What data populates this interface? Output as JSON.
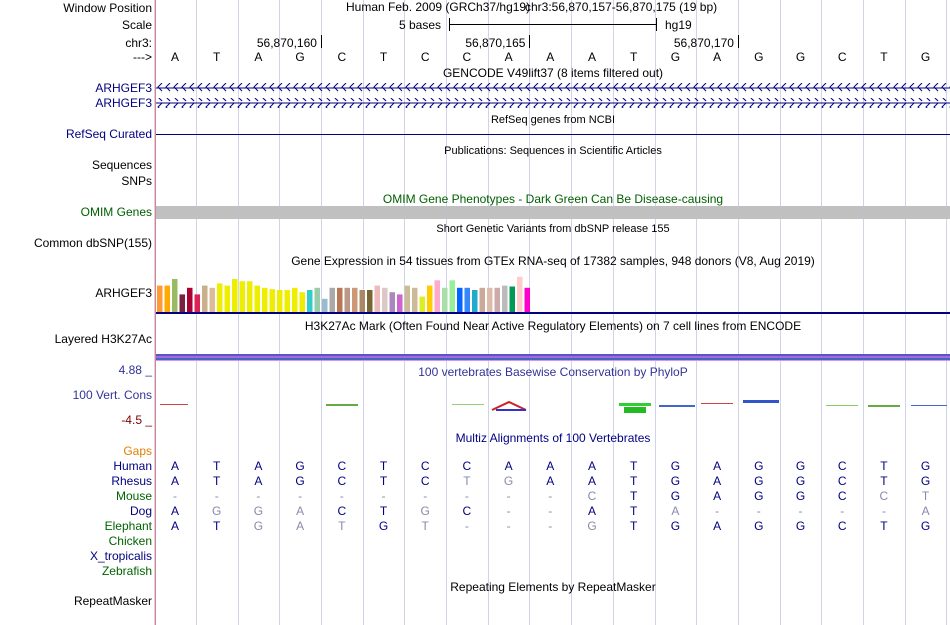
{
  "labels": {
    "window_position": "Window Position",
    "scale": "Scale",
    "chrom": "chr3:",
    "strand": "--->",
    "gencode_1": "ARHGEF3",
    "gencode_2": "ARHGEF3",
    "refseq": "RefSeq Curated",
    "sequences": "Sequences",
    "snps": "SNPs",
    "omim": "OMIM Genes",
    "dbsnp": "Common dbSNP(155)",
    "gtex": "ARHGEF3",
    "h3k27ac": "Layered H3K27Ac",
    "phylop_max": "4.88 _",
    "phylop": "100 Vert. Cons",
    "phylop_min": "-4.5 _",
    "gaps": "Gaps",
    "species": [
      "Human",
      "Rhesus",
      "Mouse",
      "Dog",
      "Elephant",
      "Chicken",
      "X_tropicalis",
      "Zebrafish"
    ],
    "repeatmasker": "RepeatMasker"
  },
  "colors": {
    "navy": "#000080",
    "omim_green": "#006000",
    "gaps_orange": "#e08000",
    "phylop_blue": "#333399",
    "phylop_min_red": "#800000",
    "separator": "#e08080",
    "gridline": "#cfd4ec",
    "omim_bar": "#c0c0c0",
    "mouse_green": "#006400",
    "faded_base": "#8a8aaa"
  },
  "header": {
    "assembly": "Human Feb. 2009 (GRCh37/hg19)",
    "position": "chr3:56,870,157-56,870,175 (19 bp)",
    "scale_label": "5 bases",
    "scale_db": "hg19",
    "ticks": [
      "56,870,160",
      "56,870,165",
      "56,870,170"
    ]
  },
  "sequence": [
    "A",
    "T",
    "A",
    "G",
    "C",
    "T",
    "C",
    "C",
    "A",
    "A",
    "A",
    "T",
    "G",
    "A",
    "G",
    "G",
    "C",
    "T",
    "G"
  ],
  "track_titles": {
    "gencode": "GENCODE V49lift37 (8 items filtered out)",
    "refseq": "RefSeq genes from NCBI",
    "publications": "Publications: Sequences in Scientific Articles",
    "omim": "OMIM Gene Phenotypes - Dark Green Can Be Disease-causing",
    "dbsnp": "Short Genetic Variants from dbSNP release 155",
    "gtex": "Gene Expression in 54 tissues from GTEx RNA-seq of 17382 samples, 948 donors (V8, Aug 2019)",
    "h3k27ac": "H3K27Ac Mark (Often Found Near Active Regulatory Elements) on 7 cell lines from ENCODE",
    "phylop": "100 vertebrates Basewise Conservation by PhyloP",
    "multiz": "Multiz Alignments of 100 Vertebrates",
    "repeatmasker": "Repeating Elements by RepeatMasker"
  },
  "gtex_bars": [
    {
      "h": 0.6,
      "c": "#ff9933"
    },
    {
      "h": 0.6,
      "c": "#ffaa00"
    },
    {
      "h": 0.75,
      "c": "#99bb66"
    },
    {
      "h": 0.4,
      "c": "#7b1f3f"
    },
    {
      "h": 0.55,
      "c": "#aa0033"
    },
    {
      "h": 0.4,
      "c": "#dd2255"
    },
    {
      "h": 0.6,
      "c": "#c8b08a"
    },
    {
      "h": 0.55,
      "c": "#ddbb99"
    },
    {
      "h": 0.65,
      "c": "#eeee00"
    },
    {
      "h": 0.6,
      "c": "#eeee00"
    },
    {
      "h": 0.75,
      "c": "#eeee00"
    },
    {
      "h": 0.7,
      "c": "#eeee00"
    },
    {
      "h": 0.7,
      "c": "#eeee00"
    },
    {
      "h": 0.6,
      "c": "#eeee00"
    },
    {
      "h": 0.55,
      "c": "#eeee00"
    },
    {
      "h": 0.52,
      "c": "#eeee00"
    },
    {
      "h": 0.5,
      "c": "#eeee00"
    },
    {
      "h": 0.5,
      "c": "#eeee00"
    },
    {
      "h": 0.55,
      "c": "#eeee00"
    },
    {
      "h": 0.45,
      "c": "#eeee00"
    },
    {
      "h": 0.5,
      "c": "#33cccc"
    },
    {
      "h": 0.55,
      "c": "#99ccaa"
    },
    {
      "h": 0.3,
      "c": "#99bbcc"
    },
    {
      "h": 0.55,
      "c": "#aaaaaa"
    },
    {
      "h": 0.55,
      "c": "#bb7755"
    },
    {
      "h": 0.55,
      "c": "#bb9988"
    },
    {
      "h": 0.55,
      "c": "#cc9977"
    },
    {
      "h": 0.5,
      "c": "#aa8866"
    },
    {
      "h": 0.5,
      "c": "#776633"
    },
    {
      "h": 0.6,
      "c": "#eebbbb"
    },
    {
      "h": 0.55,
      "c": "#ddc7c7"
    },
    {
      "h": 0.45,
      "c": "#aa88bb"
    },
    {
      "h": 0.4,
      "c": "#cc66cc"
    },
    {
      "h": 0.6,
      "c": "#ccbb99"
    },
    {
      "h": 0.55,
      "c": "#ccbb99"
    },
    {
      "h": 0.35,
      "c": "#ddee22"
    },
    {
      "h": 0.6,
      "c": "#ffcc00"
    },
    {
      "h": 0.72,
      "c": "#ffaacc"
    },
    {
      "h": 0.55,
      "c": "#aaddaa"
    },
    {
      "h": 0.72,
      "c": "#99ee99"
    },
    {
      "h": 0.55,
      "c": "#0066ff"
    },
    {
      "h": 0.55,
      "c": "#3388ff"
    },
    {
      "h": 0.5,
      "c": "#22aacc"
    },
    {
      "h": 0.55,
      "c": "#ccaa99"
    },
    {
      "h": 0.55,
      "c": "#ddbbaa"
    },
    {
      "h": 0.55,
      "c": "#ccaaaa"
    },
    {
      "h": 0.6,
      "c": "#bbbbbb"
    },
    {
      "h": 0.58,
      "c": "#009955"
    },
    {
      "h": 0.8,
      "c": "#ffcccc"
    },
    {
      "h": 0.55,
      "c": "#ff00cc"
    }
  ],
  "multiz": [
    {
      "name": "Human",
      "bases": [
        "A",
        "T",
        "A",
        "G",
        "C",
        "T",
        "C",
        "C",
        "A",
        "A",
        "A",
        "T",
        "G",
        "A",
        "G",
        "G",
        "C",
        "T",
        "G"
      ],
      "faded": []
    },
    {
      "name": "Rhesus",
      "bases": [
        "A",
        "T",
        "A",
        "G",
        "C",
        "T",
        "C",
        "T",
        "G",
        "A",
        "A",
        "T",
        "G",
        "A",
        "G",
        "G",
        "C",
        "T",
        "G"
      ],
      "faded": [
        7,
        8
      ]
    },
    {
      "name": "Mouse",
      "bases": [
        "-",
        "-",
        "-",
        "-",
        "-",
        "-",
        "-",
        "-",
        "-",
        "-",
        "C",
        "T",
        "G",
        "A",
        "G",
        "G",
        "C",
        "C",
        "T"
      ],
      "faded": [
        10,
        17,
        18
      ]
    },
    {
      "name": "Dog",
      "bases": [
        "A",
        "G",
        "G",
        "A",
        "C",
        "T",
        "G",
        "C",
        "-",
        "-",
        "A",
        "T",
        "A",
        "-",
        "-",
        "-",
        "-",
        "-",
        "A"
      ],
      "faded": [
        1,
        2,
        3,
        6,
        12,
        18
      ]
    },
    {
      "name": "Elephant",
      "bases": [
        "A",
        "T",
        "G",
        "A",
        "T",
        "G",
        "T",
        "-",
        "-",
        "-",
        "G",
        "T",
        "G",
        "A",
        "G",
        "G",
        "C",
        "T",
        "G"
      ],
      "faded": [
        2,
        3,
        4,
        6,
        7,
        10
      ]
    }
  ]
}
